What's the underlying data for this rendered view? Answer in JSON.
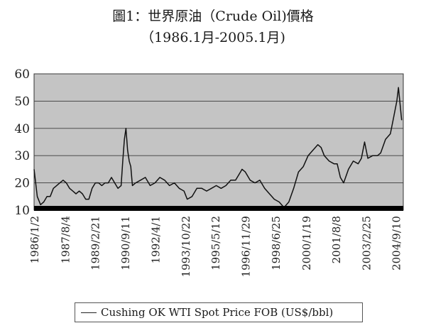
{
  "chart_data": {
    "type": "line",
    "title": "圖1：世界原油（Crude Oil)價格",
    "subtitle": "（1986.1月-2005.1月)",
    "ylim": [
      10,
      60
    ],
    "yticks": [
      10,
      20,
      30,
      40,
      50,
      60
    ],
    "grid": true,
    "legend_position": "bottom",
    "x_tick_labels": [
      "1986/1/2",
      "1987/8/4",
      "1989/2/21",
      "1990/9/11",
      "1992/4/1",
      "1993/10/22",
      "1995/5/12",
      "1996/11/29",
      "1998/6/25",
      "2000/1/19",
      "2001/8/8",
      "2003/2/25",
      "2004/9/10"
    ],
    "series": [
      {
        "name": "Cushing OK WTI Spot Price FOB (US$/bbl)",
        "x": [
          "1986/1",
          "1986/3",
          "1986/5",
          "1986/7",
          "1986/9",
          "1986/11",
          "1987/1",
          "1987/3",
          "1987/5",
          "1987/7",
          "1987/9",
          "1987/11",
          "1988/1",
          "1988/3",
          "1988/5",
          "1988/7",
          "1988/9",
          "1988/11",
          "1989/1",
          "1989/3",
          "1989/5",
          "1989/7",
          "1989/9",
          "1989/11",
          "1990/1",
          "1990/3",
          "1990/5",
          "1990/7",
          "1990/8",
          "1990/9",
          "1990/10",
          "1990/11",
          "1990/12",
          "1991/1",
          "1991/2",
          "1991/4",
          "1991/7",
          "1991/10",
          "1992/1",
          "1992/4",
          "1992/7",
          "1992/10",
          "1993/1",
          "1993/4",
          "1993/7",
          "1993/10",
          "1993/12",
          "1994/3",
          "1994/6",
          "1994/9",
          "1994/12",
          "1995/3",
          "1995/6",
          "1995/9",
          "1995/12",
          "1996/3",
          "1996/6",
          "1996/9",
          "1996/10",
          "1996/12",
          "1997/3",
          "1997/6",
          "1997/9",
          "1997/12",
          "1998/3",
          "1998/6",
          "1998/9",
          "1998/12",
          "1999/3",
          "1999/6",
          "1999/9",
          "1999/12",
          "2000/3",
          "2000/6",
          "2000/9",
          "2000/11",
          "2001/1",
          "2001/4",
          "2001/7",
          "2001/9",
          "2001/11",
          "2002/1",
          "2002/4",
          "2002/7",
          "2002/10",
          "2002/12",
          "2003/2",
          "2003/4",
          "2003/7",
          "2003/10",
          "2003/12",
          "2004/3",
          "2004/6",
          "2004/8",
          "2004/10",
          "2004/11",
          "2005/1"
        ],
        "values": [
          25,
          15,
          12,
          13,
          15,
          15,
          18,
          19,
          20,
          21,
          20,
          18,
          17,
          16,
          17,
          16,
          14,
          14,
          18,
          20,
          20,
          19,
          20,
          20,
          22,
          20,
          18,
          19,
          28,
          36,
          40,
          32,
          28,
          26,
          19,
          20,
          21,
          22,
          19,
          20,
          22,
          21,
          19,
          20,
          18,
          17,
          14,
          15,
          18,
          18,
          17,
          18,
          19,
          18,
          19,
          21,
          21,
          24,
          25,
          24,
          21,
          20,
          21,
          18,
          16,
          14,
          13,
          11,
          13,
          18,
          24,
          26,
          30,
          32,
          34,
          33,
          30,
          28,
          27,
          27,
          22,
          20,
          25,
          28,
          27,
          29,
          35,
          29,
          30,
          30,
          31,
          36,
          38,
          44,
          50,
          55,
          43
        ]
      }
    ]
  },
  "legend": {
    "label": "Cushing OK WTI Spot Price FOB (US$/bbl)"
  }
}
